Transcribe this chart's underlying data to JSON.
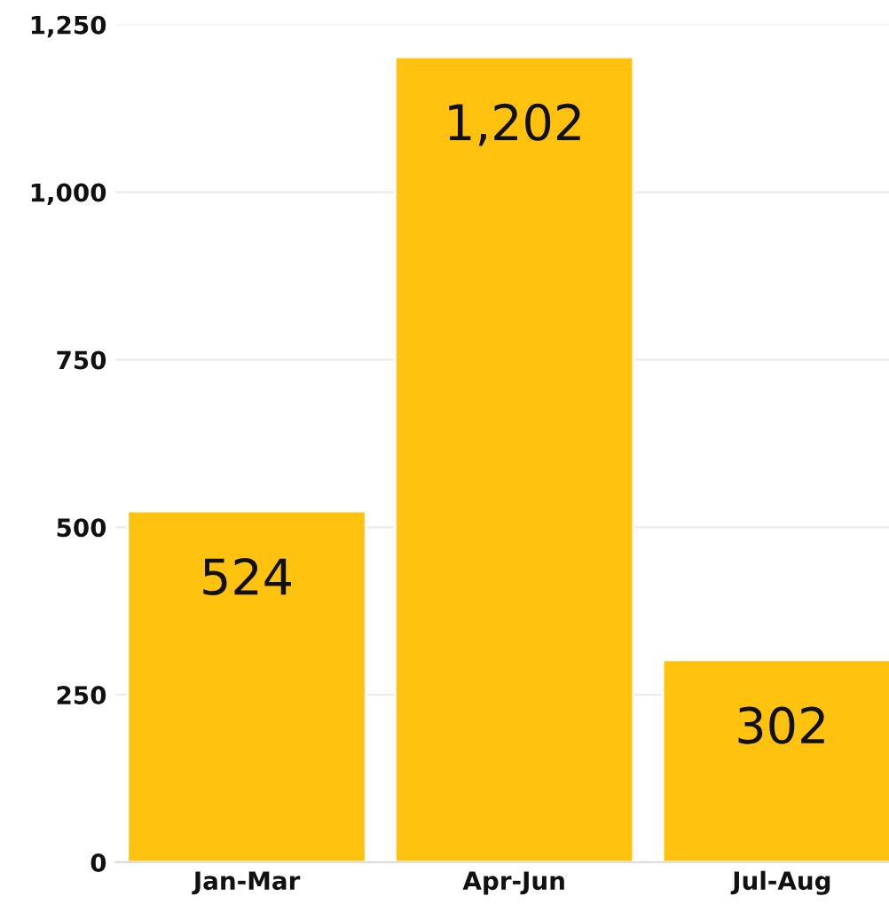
{
  "chart_data": {
    "type": "bar",
    "categories": [
      "Jan-Mar",
      "Apr-Jun",
      "Jul-Aug"
    ],
    "values": [
      524,
      1202,
      302
    ],
    "color": "#ffc20e",
    "ylim": [
      0,
      1250
    ],
    "yticks": [
      0,
      {
        "value": 250,
        "label": "250"
      },
      {
        "value": 500,
        "label": "500"
      },
      {
        "value": 750,
        "label": "750"
      },
      {
        "value": 1000,
        "label": "1,000"
      },
      {
        "value": 1250,
        "label": "1,250"
      }
    ],
    "grid": "y",
    "value_labels": [
      "524",
      "1,202",
      "302"
    ]
  }
}
